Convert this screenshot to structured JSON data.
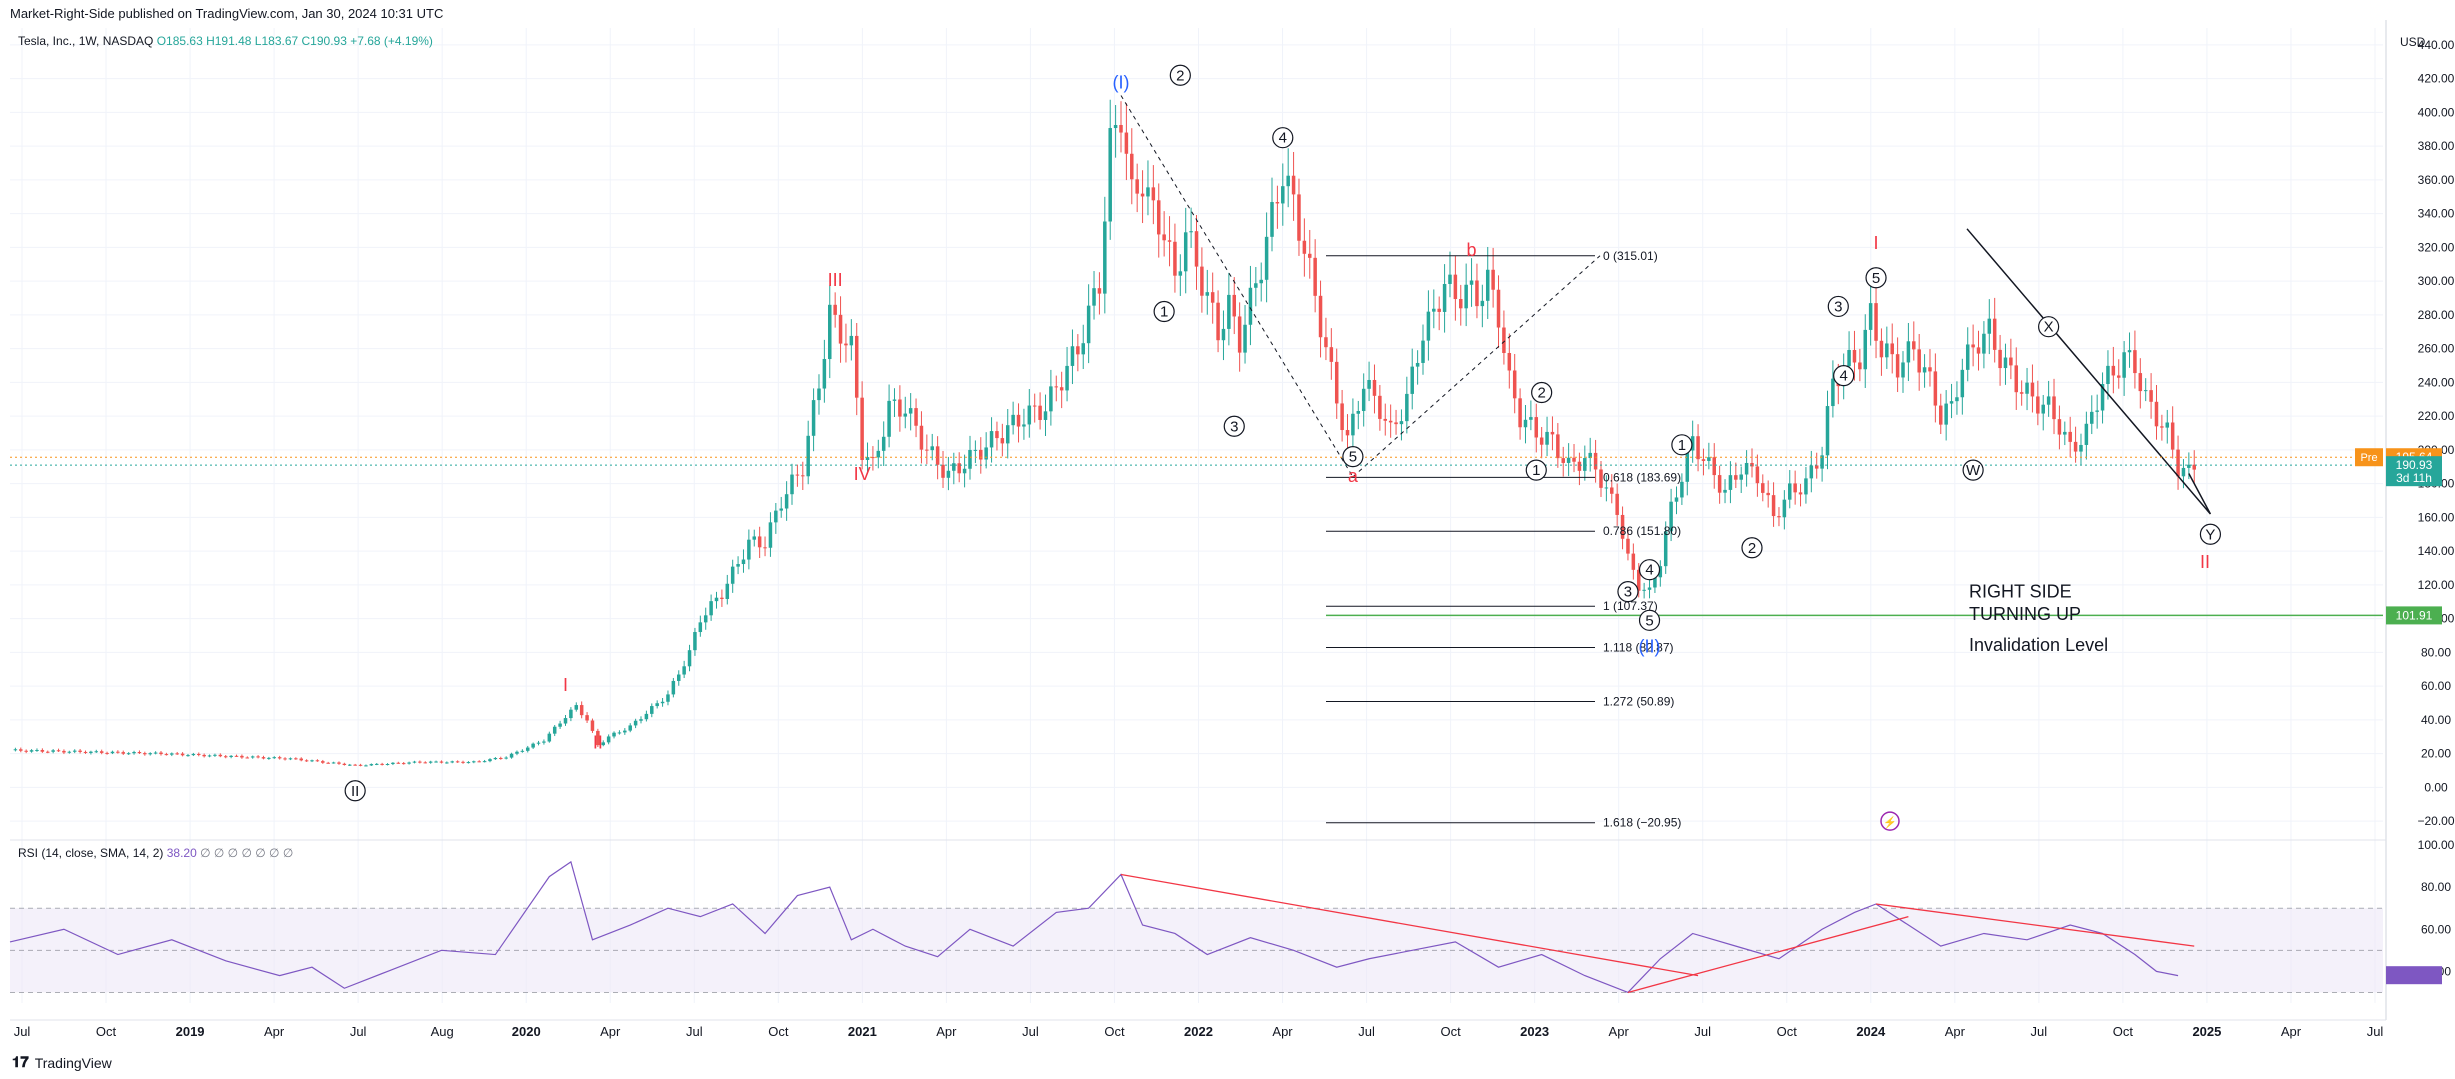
{
  "header": {
    "published": "Market-Right-Side published on TradingView.com, Jan 30, 2024 10:31 UTC",
    "symbol": "Tesla, Inc., 1W, NASDAQ",
    "ohlc": "O185.63  H191.48  L183.67  C190.93  +7.68 (+4.19%)"
  },
  "footer": {
    "logo": "TradingView"
  },
  "colors": {
    "up": "#26a69a",
    "down": "#ef5350",
    "rsi": "#7e57c2",
    "wave": "#f23645",
    "waveBlue": "#2962ff",
    "invalid": "#4caf50",
    "pre": "#f7931a"
  },
  "chart_data": [
    {
      "type": "candlestick",
      "ylim": [
        -30,
        450
      ],
      "price_axis": {
        "unit": "USD",
        "ticks": [
          -20,
          0,
          20,
          40,
          60,
          80,
          100,
          120,
          140,
          160,
          180,
          200,
          220,
          240,
          260,
          280,
          300,
          320,
          340,
          360,
          380,
          400,
          420,
          440
        ]
      },
      "time_axis": [
        "Jul",
        "Oct",
        "2019",
        "Apr",
        "Jul",
        "Aug",
        "2020",
        "Apr",
        "Jul",
        "Oct",
        "2021",
        "Apr",
        "Jul",
        "Oct",
        "2022",
        "Apr",
        "Jul",
        "Oct",
        "2023",
        "Apr",
        "Jul",
        "Oct",
        "2024",
        "Apr",
        "Jul",
        "Oct",
        "2025",
        "Apr",
        "Jul"
      ],
      "price_path": [
        [
          0,
          22
        ],
        [
          28,
          20
        ],
        [
          52,
          17
        ],
        [
          64,
          13
        ],
        [
          76,
          15
        ],
        [
          86,
          15
        ],
        [
          92,
          18
        ],
        [
          99,
          28
        ],
        [
          103,
          42
        ],
        [
          105,
          48
        ],
        [
          107,
          40
        ],
        [
          109,
          25
        ],
        [
          111,
          30
        ],
        [
          115,
          36
        ],
        [
          122,
          55
        ],
        [
          126,
          80
        ],
        [
          128,
          100
        ],
        [
          132,
          115
        ],
        [
          137,
          145
        ],
        [
          140,
          145
        ],
        [
          143,
          170
        ],
        [
          147,
          190
        ],
        [
          150,
          240
        ],
        [
          152,
          280
        ],
        [
          154,
          270
        ],
        [
          156,
          260
        ],
        [
          158,
          200
        ],
        [
          160,
          190
        ],
        [
          163,
          225
        ],
        [
          166,
          225
        ],
        [
          170,
          200
        ],
        [
          174,
          185
        ],
        [
          178,
          195
        ],
        [
          184,
          210
        ],
        [
          188,
          220
        ],
        [
          192,
          225
        ],
        [
          198,
          260
        ],
        [
          202,
          300
        ],
        [
          204,
          380
        ],
        [
          206,
          400
        ],
        [
          208,
          350
        ],
        [
          210,
          360
        ],
        [
          212,
          340
        ],
        [
          214,
          330
        ],
        [
          216,
          300
        ],
        [
          218,
          330
        ],
        [
          220,
          310
        ],
        [
          222,
          290
        ],
        [
          224,
          270
        ],
        [
          226,
          285
        ],
        [
          228,
          265
        ],
        [
          232,
          310
        ],
        [
          236,
          365
        ],
        [
          238,
          345
        ],
        [
          240,
          320
        ],
        [
          242,
          290
        ],
        [
          244,
          260
        ],
        [
          246,
          230
        ],
        [
          248,
          205
        ],
        [
          251,
          240
        ],
        [
          254,
          225
        ],
        [
          256,
          210
        ],
        [
          259,
          230
        ],
        [
          262,
          270
        ],
        [
          264,
          280
        ],
        [
          266,
          300
        ],
        [
          268,
          290
        ],
        [
          270,
          295
        ],
        [
          272,
          290
        ],
        [
          274,
          300
        ],
        [
          276,
          280
        ],
        [
          278,
          240
        ],
        [
          280,
          220
        ],
        [
          283,
          210
        ],
        [
          286,
          205
        ],
        [
          289,
          190
        ],
        [
          292,
          195
        ],
        [
          294,
          190
        ],
        [
          296,
          175
        ],
        [
          298,
          165
        ],
        [
          300,
          135
        ],
        [
          302,
          120
        ],
        [
          304,
          115
        ],
        [
          306,
          135
        ],
        [
          308,
          165
        ],
        [
          310,
          185
        ],
        [
          312,
          205
        ],
        [
          314,
          195
        ],
        [
          316,
          185
        ],
        [
          318,
          175
        ],
        [
          321,
          190
        ],
        [
          324,
          185
        ],
        [
          327,
          160
        ],
        [
          330,
          175
        ],
        [
          333,
          180
        ],
        [
          336,
          200
        ],
        [
          338,
          240
        ],
        [
          340,
          250
        ],
        [
          343,
          255
        ],
        [
          345,
          280
        ],
        [
          347,
          260
        ],
        [
          350,
          250
        ],
        [
          353,
          260
        ],
        [
          356,
          240
        ],
        [
          358,
          220
        ],
        [
          360,
          225
        ],
        [
          362,
          250
        ],
        [
          365,
          265
        ],
        [
          367,
          270
        ],
        [
          369,
          255
        ],
        [
          372,
          240
        ],
        [
          375,
          230
        ],
        [
          378,
          225
        ],
        [
          380,
          215
        ],
        [
          382,
          200
        ],
        [
          385,
          210
        ],
        [
          388,
          240
        ],
        [
          390,
          245
        ],
        [
          392,
          255
        ],
        [
          394,
          250
        ],
        [
          396,
          230
        ],
        [
          398,
          220
        ],
        [
          400,
          210
        ],
        [
          402,
          190
        ],
        [
          404,
          186
        ],
        [
          405,
          191
        ]
      ],
      "levels": [
        {
          "label": "0 (315.01)",
          "value": 315.01
        },
        {
          "label": "0.618 (183.69)",
          "value": 183.69
        },
        {
          "label": "0.786 (151.80)",
          "value": 151.8
        },
        {
          "label": "1 (107.37)",
          "value": 107.37
        },
        {
          "label": "1.118 (82.87)",
          "value": 82.87
        },
        {
          "label": "1.272 (50.89)",
          "value": 50.89
        },
        {
          "label": "1.618 (−20.95)",
          "value": -20.95
        }
      ],
      "price_badges": [
        {
          "label": "Pre",
          "value": "195.64",
          "price": 195.64,
          "color": "#f7931a"
        },
        {
          "label": "",
          "value": "190.93",
          "sub": "3d 11h",
          "price": 190.93,
          "color": "#26a69a"
        },
        {
          "label": "",
          "value": "101.91",
          "price": 101.91,
          "color": "#4caf50"
        }
      ],
      "annotations": [
        "RIGHT SIDE",
        "TURNING UP",
        "Invalidation Level"
      ],
      "waves": [
        {
          "text": "II",
          "week": 64,
          "price": -2,
          "circle": true,
          "color": "#131722"
        },
        {
          "text": "I",
          "week": 103,
          "price": 60,
          "color": "#f23645"
        },
        {
          "text": "II",
          "week": 109,
          "price": 26,
          "color": "#f23645",
          "below": true
        },
        {
          "text": "III",
          "week": 153,
          "price": 300,
          "color": "#f23645"
        },
        {
          "text": "IV",
          "week": 158,
          "price": 185,
          "color": "#f23645",
          "below": true
        },
        {
          "text": "(I)",
          "week": 206,
          "price": 417,
          "color": "#2962ff"
        },
        {
          "text": "2",
          "week": 217,
          "price": 422,
          "circle": true,
          "color": "#131722"
        },
        {
          "text": "1",
          "week": 214,
          "price": 282,
          "circle": true,
          "color": "#131722"
        },
        {
          "text": "4",
          "week": 236,
          "price": 385,
          "circle": true,
          "color": "#131722"
        },
        {
          "text": "3",
          "week": 227,
          "price": 214,
          "circle": true,
          "color": "#131722"
        },
        {
          "text": "5",
          "week": 249,
          "price": 196,
          "circle": true,
          "color": "#131722"
        },
        {
          "text": "a",
          "week": 249,
          "price": 184,
          "color": "#f23645"
        },
        {
          "text": "b",
          "week": 271,
          "price": 318,
          "color": "#f23645"
        },
        {
          "text": "2",
          "week": 284,
          "price": 234,
          "circle": true,
          "color": "#131722"
        },
        {
          "text": "1",
          "week": 283,
          "price": 188,
          "circle": true,
          "color": "#131722"
        },
        {
          "text": "1",
          "week": 310,
          "price": 203,
          "circle": true,
          "color": "#131722"
        },
        {
          "text": "3",
          "week": 300,
          "price": 116,
          "circle": true,
          "color": "#131722"
        },
        {
          "text": "4",
          "week": 304,
          "price": 129,
          "circle": true,
          "color": "#131722"
        },
        {
          "text": "5",
          "week": 304,
          "price": 99,
          "circle": true,
          "color": "#131722"
        },
        {
          "text": "(II)",
          "week": 304,
          "price": 83,
          "color": "#2962ff"
        },
        {
          "text": "2",
          "week": 323,
          "price": 142,
          "circle": true,
          "color": "#131722"
        },
        {
          "text": "3",
          "week": 339,
          "price": 285,
          "circle": true,
          "color": "#131722"
        },
        {
          "text": "4",
          "week": 340,
          "price": 244,
          "circle": true,
          "color": "#131722"
        },
        {
          "text": "I",
          "week": 346,
          "price": 322,
          "color": "#f23645"
        },
        {
          "text": "5",
          "week": 346,
          "price": 302,
          "circle": true,
          "color": "#131722"
        },
        {
          "text": "X",
          "week": 378,
          "price": 273,
          "circle": true,
          "color": "#131722"
        },
        {
          "text": "W",
          "week": 364,
          "price": 188,
          "circle": true,
          "color": "#131722"
        },
        {
          "text": "Y",
          "week": 408,
          "price": 150,
          "circle": true,
          "color": "#131722"
        },
        {
          "text": "II",
          "week": 407,
          "price": 133,
          "color": "#f23645"
        }
      ]
    },
    {
      "type": "line",
      "title": "RSI (14, close, SMA, 14, 2)",
      "value": "38.20",
      "ylim": [
        25,
        100
      ],
      "ticks": [
        40,
        60,
        80,
        100
      ],
      "bands": [
        30,
        50,
        70
      ],
      "series": [
        {
          "values": [
            [
              0,
              54
            ],
            [
              10,
              60
            ],
            [
              20,
              48
            ],
            [
              30,
              55
            ],
            [
              40,
              45
            ],
            [
              50,
              38
            ],
            [
              56,
              42
            ],
            [
              62,
              32
            ],
            [
              70,
              40
            ],
            [
              80,
              50
            ],
            [
              90,
              48
            ],
            [
              100,
              85
            ],
            [
              104,
              92
            ],
            [
              108,
              55
            ],
            [
              115,
              62
            ],
            [
              122,
              70
            ],
            [
              128,
              66
            ],
            [
              134,
              72
            ],
            [
              140,
              58
            ],
            [
              146,
              76
            ],
            [
              152,
              80
            ],
            [
              156,
              55
            ],
            [
              160,
              60
            ],
            [
              166,
              52
            ],
            [
              172,
              47
            ],
            [
              178,
              60
            ],
            [
              186,
              52
            ],
            [
              194,
              68
            ],
            [
              200,
              70
            ],
            [
              206,
              86
            ],
            [
              210,
              62
            ],
            [
              216,
              58
            ],
            [
              222,
              48
            ],
            [
              230,
              56
            ],
            [
              238,
              50
            ],
            [
              246,
              42
            ],
            [
              252,
              46
            ],
            [
              260,
              50
            ],
            [
              268,
              54
            ],
            [
              276,
              42
            ],
            [
              284,
              48
            ],
            [
              292,
              38
            ],
            [
              300,
              30
            ],
            [
              306,
              46
            ],
            [
              312,
              58
            ],
            [
              320,
              52
            ],
            [
              328,
              46
            ],
            [
              336,
              60
            ],
            [
              342,
              68
            ],
            [
              346,
              72
            ],
            [
              352,
              62
            ],
            [
              358,
              52
            ],
            [
              366,
              58
            ],
            [
              374,
              55
            ],
            [
              382,
              62
            ],
            [
              388,
              58
            ],
            [
              394,
              48
            ],
            [
              398,
              40
            ],
            [
              402,
              38
            ]
          ]
        }
      ]
    }
  ]
}
